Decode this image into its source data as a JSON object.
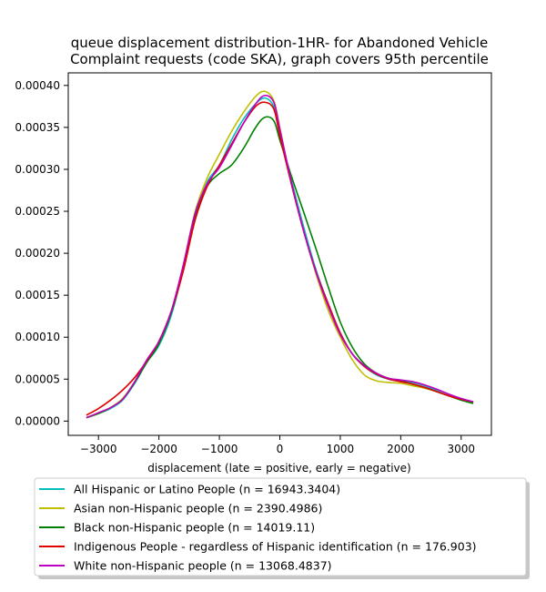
{
  "chart_data": {
    "type": "line",
    "title": "queue displacement distribution-1HR-  for Abandoned Vehicle",
    "subtitle": "Complaint  requests (code SKA), graph covers 95th percentile",
    "xlabel": "displacement (late = positive, early = negative)",
    "ylabel": "",
    "xlim": [
      -3500,
      3500
    ],
    "ylim": [
      -1.7e-05,
      0.000415
    ],
    "x_ticks": [
      -3000,
      -2000,
      -1000,
      0,
      1000,
      2000,
      3000
    ],
    "y_ticks": [
      0,
      5e-05,
      0.0001,
      0.00015,
      0.0002,
      0.00025,
      0.0003,
      0.00035,
      0.0004
    ],
    "y_tick_labels": [
      "0.00000",
      "0.00005",
      "0.00010",
      "0.00015",
      "0.00020",
      "0.00025",
      "0.00030",
      "0.00035",
      "0.00040"
    ],
    "grid": false,
    "legend_position": "below",
    "series": [
      {
        "name": "All Hispanic or Latino People (n = 16943.3404)",
        "color": "#00bfbf",
        "x": [
          -3200,
          -3000,
          -2800,
          -2600,
          -2400,
          -2200,
          -2000,
          -1800,
          -1600,
          -1400,
          -1200,
          -1000,
          -800,
          -600,
          -400,
          -250,
          -100,
          0,
          200,
          400,
          600,
          800,
          1000,
          1200,
          1400,
          1600,
          1800,
          2000,
          2200,
          2400,
          2600,
          2800,
          3000,
          3200
        ],
        "y": [
          4e-06,
          9e-06,
          1.5e-05,
          2.5e-05,
          4.5e-05,
          7e-05,
          9e-05,
          0.000125,
          0.00018,
          0.000245,
          0.000285,
          0.000305,
          0.000335,
          0.00036,
          0.000378,
          0.000385,
          0.000375,
          0.000345,
          0.000285,
          0.00023,
          0.00018,
          0.00014,
          0.000105,
          8e-05,
          6.5e-05,
          5.5e-05,
          5e-05,
          4.8e-05,
          4.6e-05,
          4.2e-05,
          3.6e-05,
          3e-05,
          2.6e-05,
          2.2e-05
        ]
      },
      {
        "name": "Asian non-Hispanic people (n = 2390.4986)",
        "color": "#bfbf00",
        "x": [
          -3200,
          -3000,
          -2800,
          -2600,
          -2400,
          -2200,
          -2000,
          -1800,
          -1600,
          -1400,
          -1200,
          -1000,
          -800,
          -600,
          -400,
          -250,
          -100,
          0,
          200,
          400,
          600,
          800,
          1000,
          1200,
          1400,
          1600,
          1800,
          2000,
          2200,
          2400,
          2600,
          2800,
          3000,
          3200
        ],
        "y": [
          4e-06,
          9e-06,
          1.6e-05,
          2.7e-05,
          4.7e-05,
          7.2e-05,
          9.5e-05,
          0.00013,
          0.000185,
          0.00025,
          0.00029,
          0.000318,
          0.000345,
          0.000368,
          0.000387,
          0.000393,
          0.000382,
          0.00035,
          0.00028,
          0.000225,
          0.000175,
          0.000132,
          0.0001,
          7.3e-05,
          5.5e-05,
          4.8e-05,
          4.6e-05,
          4.5e-05,
          4.2e-05,
          3.9e-05,
          3.5e-05,
          3e-05,
          2.6e-05,
          2.3e-05
        ]
      },
      {
        "name": "Black non-Hispanic people (n = 14019.11)",
        "color": "#008000",
        "x": [
          -3200,
          -3000,
          -2800,
          -2600,
          -2400,
          -2200,
          -2000,
          -1800,
          -1600,
          -1400,
          -1200,
          -1000,
          -800,
          -600,
          -400,
          -250,
          -100,
          0,
          200,
          400,
          600,
          800,
          1000,
          1200,
          1400,
          1600,
          1800,
          2000,
          2200,
          2400,
          2600,
          2800,
          3000,
          3200
        ],
        "y": [
          4e-06,
          9e-06,
          1.6e-05,
          2.6e-05,
          4.6e-05,
          7e-05,
          9.2e-05,
          0.000128,
          0.00018,
          0.000245,
          0.00028,
          0.000295,
          0.000305,
          0.000325,
          0.00035,
          0.000362,
          0.000358,
          0.000335,
          0.00029,
          0.000248,
          0.000205,
          0.00016,
          0.000118,
          8.8e-05,
          6.8e-05,
          5.7e-05,
          5.1e-05,
          4.8e-05,
          4.4e-05,
          4e-05,
          3.5e-05,
          3e-05,
          2.5e-05,
          2.1e-05
        ]
      },
      {
        "name": "Indigenous People - regardless of Hispanic identification (n = 176.903)",
        "color": "#e00000",
        "x": [
          -3200,
          -3000,
          -2800,
          -2600,
          -2400,
          -2200,
          -2000,
          -1800,
          -1600,
          -1400,
          -1200,
          -1000,
          -800,
          -600,
          -400,
          -250,
          -100,
          0,
          200,
          400,
          600,
          800,
          1000,
          1200,
          1400,
          1600,
          1800,
          2000,
          2200,
          2400,
          2600,
          2800,
          3000,
          3200
        ],
        "y": [
          7e-06,
          1.5e-05,
          2.5e-05,
          3.7e-05,
          5.2e-05,
          7.2e-05,
          9.5e-05,
          0.00013,
          0.000178,
          0.00024,
          0.00028,
          0.000305,
          0.00033,
          0.000355,
          0.000375,
          0.00038,
          0.000372,
          0.00034,
          0.00028,
          0.000225,
          0.000178,
          0.00014,
          0.000105,
          8e-05,
          6.5e-05,
          5.6e-05,
          5e-05,
          4.7e-05,
          4.4e-05,
          4e-05,
          3.5e-05,
          3e-05,
          2.6e-05,
          2.3e-05
        ]
      },
      {
        "name": "White non-Hispanic people (n = 13068.4837)",
        "color": "#c000c0",
        "x": [
          -3200,
          -3000,
          -2800,
          -2600,
          -2400,
          -2200,
          -2000,
          -1800,
          -1600,
          -1400,
          -1200,
          -1000,
          -800,
          -600,
          -400,
          -250,
          -100,
          0,
          200,
          400,
          600,
          800,
          1000,
          1200,
          1400,
          1600,
          1800,
          2000,
          2200,
          2400,
          2600,
          2800,
          3000,
          3200
        ],
        "y": [
          4e-06,
          1e-05,
          1.6e-05,
          2.6e-05,
          4.7e-05,
          7.3e-05,
          9.5e-05,
          0.00013,
          0.000185,
          0.000248,
          0.000283,
          0.000302,
          0.000328,
          0.000355,
          0.000378,
          0.000388,
          0.00038,
          0.000348,
          0.000282,
          0.000225,
          0.000177,
          0.000137,
          0.000103,
          8e-05,
          6.6e-05,
          5.7e-05,
          5.1e-05,
          4.9e-05,
          4.7e-05,
          4.3e-05,
          3.8e-05,
          3.2e-05,
          2.7e-05,
          2.3e-05
        ]
      }
    ]
  }
}
